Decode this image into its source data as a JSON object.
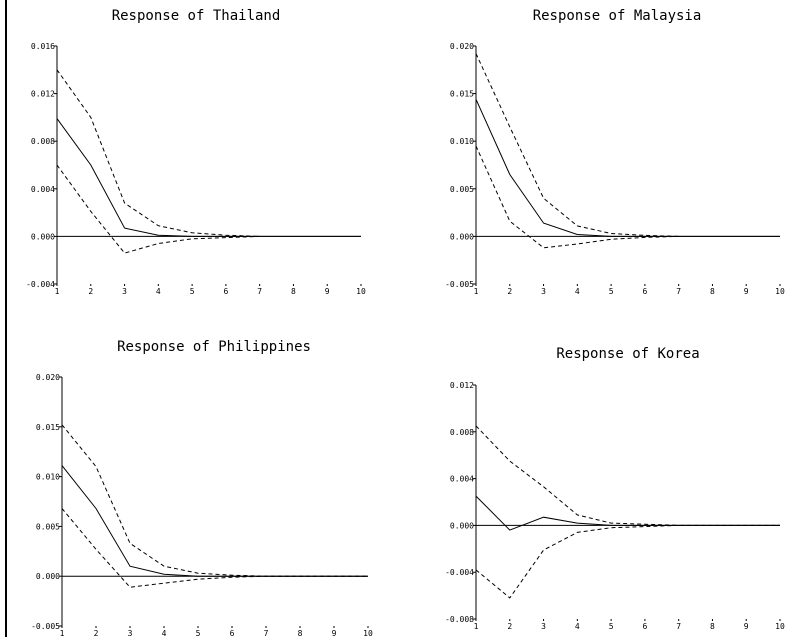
{
  "chart_data": [
    {
      "type": "line",
      "title": "Response of Thailand",
      "xlabel": "",
      "ylabel": "",
      "x": [
        1,
        2,
        3,
        4,
        5,
        6,
        7,
        8,
        9,
        10
      ],
      "xticks": [
        "1",
        "2",
        "3",
        "4",
        "5",
        "6",
        "7",
        "8",
        "9",
        "10"
      ],
      "ylim": [
        -0.004,
        0.016
      ],
      "yticks": [
        -0.004,
        0.0,
        0.004,
        0.008,
        0.012,
        0.016
      ],
      "ytick_labels": [
        "-0.004",
        "0.000",
        "0.004",
        "0.008",
        "0.012",
        "0.016"
      ],
      "zero_line": true,
      "grid": false,
      "series": [
        {
          "role": "response",
          "style": "solid",
          "values": [
            0.0099,
            0.006,
            0.0007,
            0.0001,
            0.0,
            0.0,
            0.0,
            0.0,
            0.0,
            0.0
          ]
        },
        {
          "role": "upper",
          "style": "dashed",
          "values": [
            0.014,
            0.01,
            0.0028,
            0.0009,
            0.0003,
            0.0001,
            0.0,
            null,
            null,
            null
          ]
        },
        {
          "role": "lower",
          "style": "dashed",
          "values": [
            0.006,
            0.0021,
            -0.0014,
            -0.0006,
            -0.0002,
            -0.0001,
            0.0,
            null,
            null,
            null
          ]
        }
      ]
    },
    {
      "type": "line",
      "title": "Response of Malaysia",
      "xlabel": "",
      "ylabel": "",
      "x": [
        1,
        2,
        3,
        4,
        5,
        6,
        7,
        8,
        9,
        10
      ],
      "xticks": [
        "1",
        "2",
        "3",
        "4",
        "5",
        "6",
        "7",
        "8",
        "9",
        "10"
      ],
      "ylim": [
        -0.005,
        0.02
      ],
      "yticks": [
        -0.005,
        0.0,
        0.005,
        0.01,
        0.015,
        0.02
      ],
      "ytick_labels": [
        "-0.005",
        "0.000",
        "0.005",
        "0.010",
        "0.015",
        "0.020"
      ],
      "zero_line": true,
      "grid": false,
      "series": [
        {
          "role": "response",
          "style": "solid",
          "values": [
            0.0144,
            0.0065,
            0.0014,
            0.0002,
            0.0,
            0.0,
            0.0,
            0.0,
            0.0,
            0.0
          ]
        },
        {
          "role": "upper",
          "style": "dashed",
          "values": [
            0.0192,
            0.0115,
            0.004,
            0.0011,
            0.0003,
            0.0001,
            0.0,
            null,
            null,
            null
          ]
        },
        {
          "role": "lower",
          "style": "dashed",
          "values": [
            0.0095,
            0.0016,
            -0.0012,
            -0.0008,
            -0.0003,
            -0.0001,
            0.0,
            null,
            null,
            null
          ]
        }
      ]
    },
    {
      "type": "line",
      "title": "Response of Philippines",
      "xlabel": "",
      "ylabel": "",
      "x": [
        1,
        2,
        3,
        4,
        5,
        6,
        7,
        8,
        9,
        10
      ],
      "xticks": [
        "1",
        "2",
        "3",
        "4",
        "5",
        "6",
        "7",
        "8",
        "9",
        "10"
      ],
      "ylim": [
        -0.005,
        0.02
      ],
      "yticks": [
        -0.005,
        0.0,
        0.005,
        0.01,
        0.015,
        0.02
      ],
      "ytick_labels": [
        "-0.005",
        "0.000",
        "0.005",
        "0.010",
        "0.015",
        "0.020"
      ],
      "zero_line": true,
      "grid": false,
      "series": [
        {
          "role": "response",
          "style": "solid",
          "values": [
            0.0111,
            0.0068,
            0.001,
            0.0002,
            0.0,
            0.0,
            0.0,
            0.0,
            0.0,
            0.0
          ]
        },
        {
          "role": "upper",
          "style": "dashed",
          "values": [
            0.0152,
            0.011,
            0.0033,
            0.001,
            0.0003,
            0.0001,
            0.0,
            0.0,
            0.0,
            0.0
          ]
        },
        {
          "role": "lower",
          "style": "dashed",
          "values": [
            0.0068,
            0.0027,
            -0.0011,
            -0.0007,
            -0.0003,
            -0.0001,
            0.0,
            0.0,
            0.0,
            0.0
          ]
        }
      ]
    },
    {
      "type": "line",
      "title": "Response of Korea",
      "xlabel": "",
      "ylabel": "",
      "x": [
        1,
        2,
        3,
        4,
        5,
        6,
        7,
        8,
        9,
        10
      ],
      "xticks": [
        "1",
        "2",
        "3",
        "4",
        "5",
        "6",
        "7",
        "8",
        "9",
        "10"
      ],
      "ylim": [
        -0.008,
        0.012
      ],
      "yticks": [
        -0.008,
        -0.004,
        0.0,
        0.004,
        0.008,
        0.012
      ],
      "ytick_labels": [
        "-0.008",
        "-0.004",
        "0.000",
        "0.004",
        "0.008",
        "0.012"
      ],
      "zero_line": true,
      "grid": false,
      "series": [
        {
          "role": "response",
          "style": "solid",
          "values": [
            0.0025,
            -0.0004,
            0.0007,
            0.0002,
            0.0,
            0.0,
            0.0,
            0.0,
            0.0,
            0.0
          ]
        },
        {
          "role": "upper",
          "style": "dashed",
          "values": [
            0.0085,
            0.0055,
            0.0033,
            0.0009,
            0.0002,
            0.0001,
            0.0,
            0.0,
            0.0,
            0.0
          ]
        },
        {
          "role": "lower",
          "style": "dashed",
          "values": [
            -0.0038,
            -0.0062,
            -0.0021,
            -0.0006,
            -0.0002,
            -0.0001,
            0.0,
            0.0,
            0.0,
            0.0
          ]
        }
      ]
    }
  ]
}
